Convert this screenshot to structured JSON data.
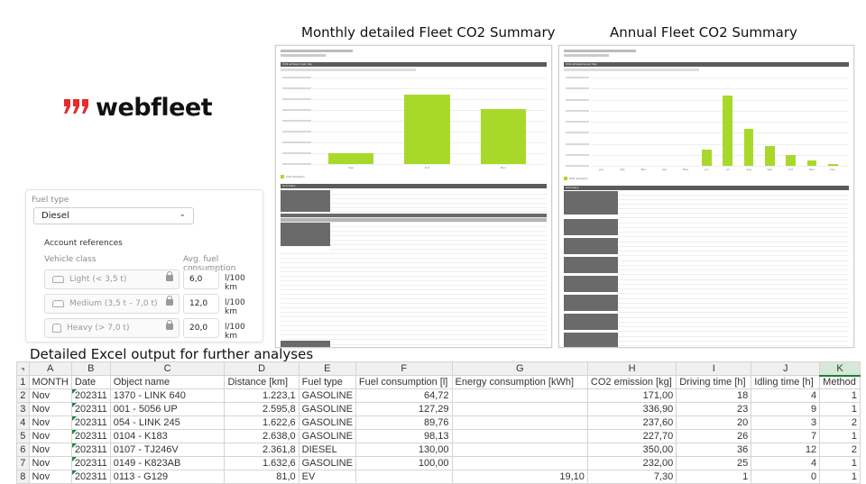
{
  "headings": {
    "monthly": "Monthly detailed Fleet CO2 Summary",
    "annual": "Annual Fleet CO2 Summary",
    "excel": "Detailed Excel output for further analyses"
  },
  "logo": {
    "mark": "‘’",
    "word": "webfleet",
    "brand_color": "#e52b2b"
  },
  "fuel_panel": {
    "fuel_type_label": "Fuel type",
    "fuel_type_value": "Diesel",
    "account_references": "Account references",
    "vehicle_class_header": "Vehicle class",
    "avg_consumption_header": "Avg. fuel consumption",
    "rows": [
      {
        "label": "Light (< 3,5 t)",
        "value": "6,0",
        "unit": "l/100 km"
      },
      {
        "label": "Medium (3,5 t – 7,0 t)",
        "value": "12,0",
        "unit": "l/100 km"
      },
      {
        "label": "Heavy (> 7,0 t)",
        "value": "20,0",
        "unit": "l/100 km"
      }
    ]
  },
  "monthly_report": {
    "chart_data": {
      "type": "bar",
      "categories": [
        "Sep",
        "Oct",
        "Nov"
      ],
      "values": [
        120000,
        800000,
        640000
      ],
      "ylim": [
        0,
        1000000
      ],
      "legend": "CO2 emission",
      "color": "#a8d92a"
    },
    "section_title": "CO2 emission per day",
    "summary_title": "Summary"
  },
  "annual_report": {
    "chart_data": {
      "type": "bar",
      "categories": [
        "Jan",
        "Feb",
        "Mar",
        "Apr",
        "May",
        "Jun",
        "Jul",
        "Aug",
        "Sep",
        "Oct",
        "Nov",
        "Dec"
      ],
      "values": [
        0,
        0,
        0,
        0,
        0,
        18,
        80,
        42,
        22,
        12,
        6,
        2
      ],
      "ylim": [
        0,
        100
      ],
      "legend": "CO2 emission",
      "color": "#a8d92a"
    },
    "section_title": "CO2 emissions per day",
    "summary_title": "Summary"
  },
  "excel": {
    "columns": [
      "A",
      "B",
      "C",
      "D",
      "E",
      "F",
      "G",
      "H",
      "I",
      "J",
      "K"
    ],
    "headers": [
      "MONTH",
      "Date",
      "Object name",
      "Distance [km]",
      "Fuel type",
      "Fuel consumption [l]",
      "Energy consumption [kWh]",
      "CO2 emission [kg]",
      "Driving time [h]",
      "Idling time [h]",
      "Method"
    ],
    "rows": [
      [
        "Nov",
        "202311",
        "1370 - LINK 640",
        "1.223,1",
        "GASOLINE",
        "64,72",
        "",
        "171,00",
        "18",
        "4",
        "1"
      ],
      [
        "Nov",
        "202311",
        "001 - 5056 UP",
        "2.595,8",
        "GASOLINE",
        "127,29",
        "",
        "336,90",
        "23",
        "9",
        "1"
      ],
      [
        "Nov",
        "202311",
        "054 - LINK 245",
        "1.622,6",
        "GASOLINE",
        "89,76",
        "",
        "237,60",
        "20",
        "3",
        "2"
      ],
      [
        "Nov",
        "202311",
        "0104 - K183",
        "2.638,0",
        "GASOLINE",
        "98,13",
        "",
        "227,70",
        "26",
        "7",
        "1"
      ],
      [
        "Nov",
        "202311",
        "0107 - TJ246V",
        "2.361,8",
        "DIESEL",
        "130,00",
        "",
        "350,00",
        "36",
        "12",
        "2"
      ],
      [
        "Nov",
        "202311",
        "0149 - K823AB",
        "1.632,6",
        "GASOLINE",
        "100,00",
        "",
        "232,00",
        "25",
        "4",
        "1"
      ],
      [
        "Nov",
        "202311",
        "0113 - G129",
        "81,0",
        "EV",
        "",
        "19,10",
        "7,30",
        "1",
        "0",
        "1"
      ]
    ]
  }
}
